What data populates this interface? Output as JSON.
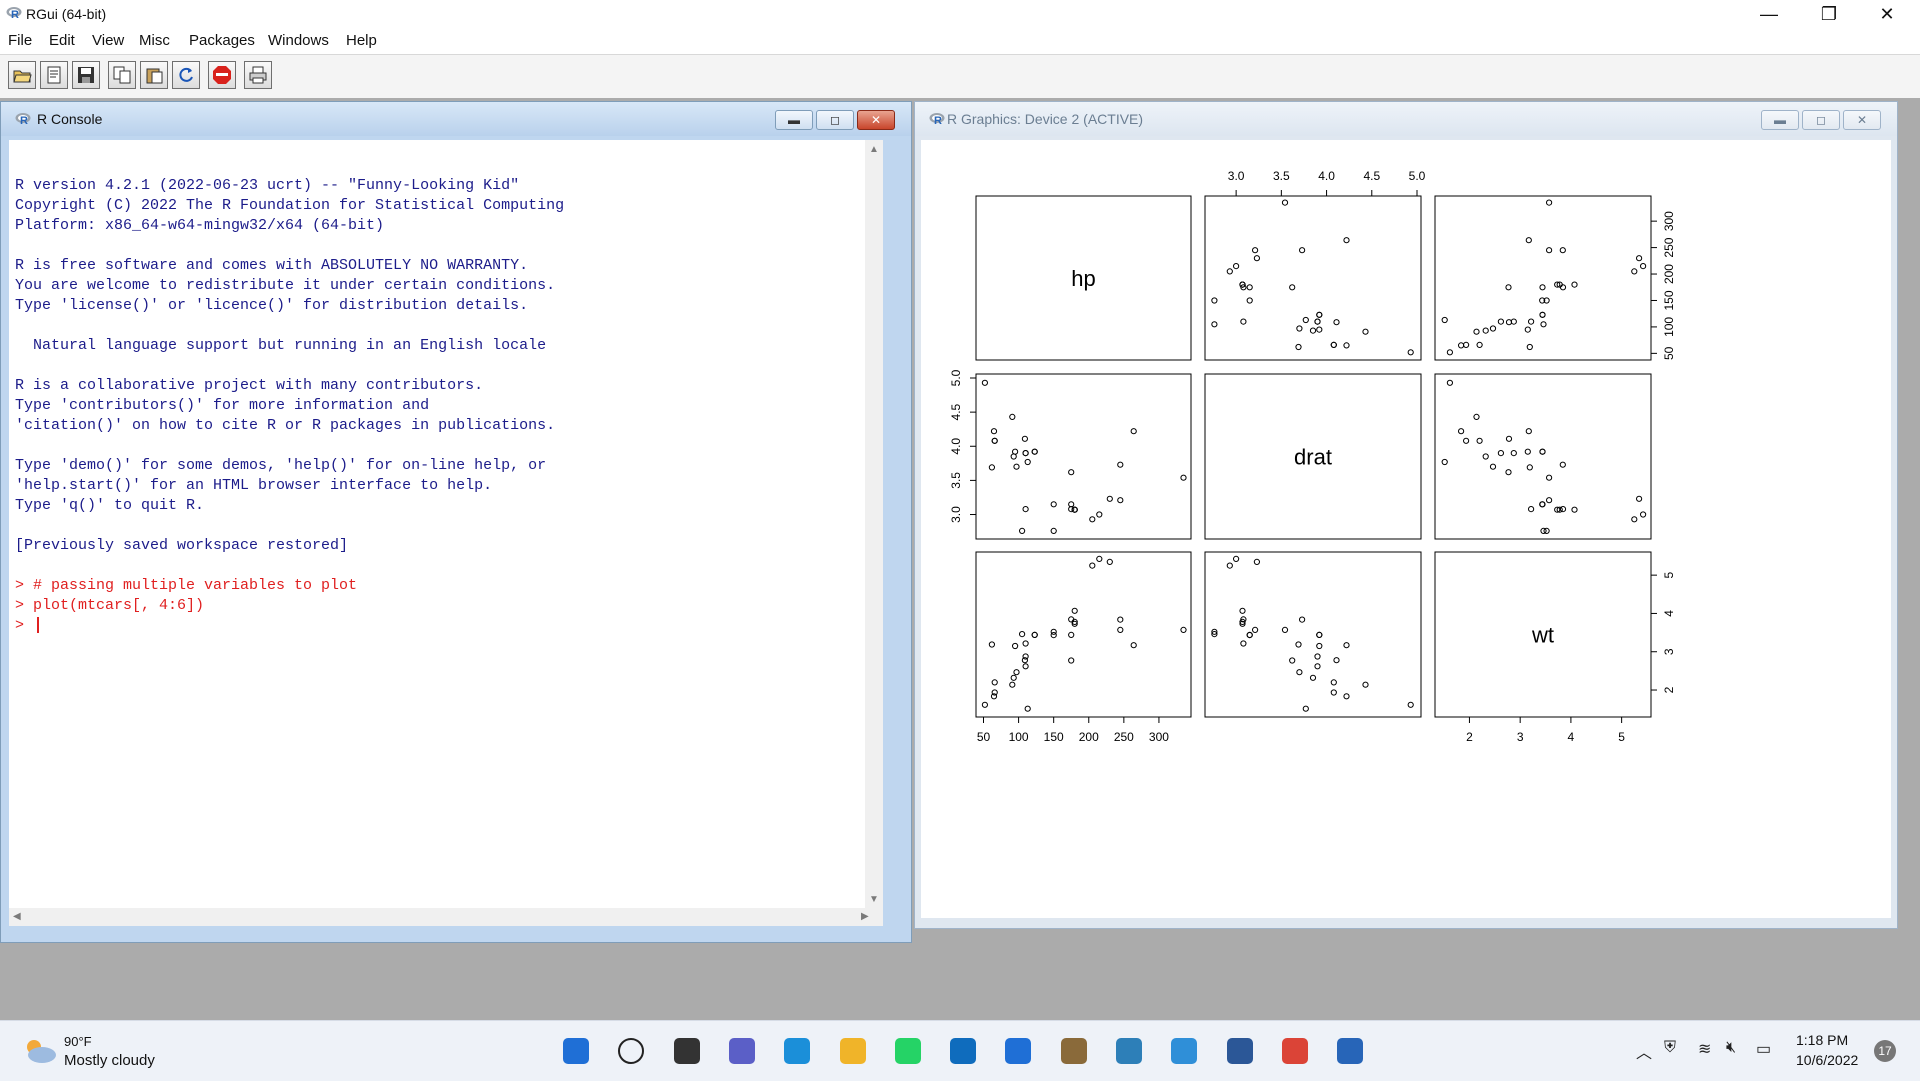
{
  "app": {
    "title": "RGui (64-bit)",
    "controls": {
      "minimize": "—",
      "restore": "❐",
      "close": "✕"
    }
  },
  "menu": [
    "File",
    "Edit",
    "View",
    "Misc",
    "Packages",
    "Windows",
    "Help"
  ],
  "toolbar": [
    "open-script-icon",
    "load-workspace-icon",
    "save-icon",
    "copy-icon",
    "paste-icon",
    "refresh-icon",
    "stop-icon",
    "print-icon"
  ],
  "console": {
    "title": "R Console",
    "lines": [
      "R version 4.2.1 (2022-06-23 ucrt) -- \"Funny-Looking Kid\"",
      "Copyright (C) 2022 The R Foundation for Statistical Computing",
      "Platform: x86_64-w64-mingw32/x64 (64-bit)",
      "",
      "R is free software and comes with ABSOLUTELY NO WARRANTY.",
      "You are welcome to redistribute it under certain conditions.",
      "Type 'license()' or 'licence()' for distribution details.",
      "",
      "  Natural language support but running in an English locale",
      "",
      "R is a collaborative project with many contributors.",
      "Type 'contributors()' for more information and",
      "'citation()' on how to cite R or R packages in publications.",
      "",
      "Type 'demo()' for some demos, 'help()' for on-line help, or",
      "'help.start()' for an HTML browser interface to help.",
      "Type 'q()' to quit R.",
      "",
      "[Previously saved workspace restored]",
      ""
    ],
    "input_lines": [
      "> # passing multiple variables to plot",
      "> plot(mtcars[, 4:6])"
    ],
    "prompt": "> "
  },
  "graphics": {
    "title": "R Graphics: Device 2 (ACTIVE)"
  },
  "chart_data": {
    "type": "scatter",
    "variables": [
      "hp",
      "drat",
      "wt"
    ],
    "axes": {
      "hp": {
        "range": [
          45,
          340
        ],
        "ticks": [
          "50",
          "100",
          "150",
          "200",
          "250",
          "300"
        ]
      },
      "drat": {
        "range": [
          2.7,
          5.0
        ],
        "ticks": [
          "3.0",
          "3.5",
          "4.0",
          "4.5",
          "5.0"
        ]
      },
      "wt": {
        "range": [
          1.4,
          5.5
        ],
        "ticks": [
          "2",
          "3",
          "4",
          "5"
        ]
      }
    },
    "points": {
      "hp": [
        110,
        110,
        93,
        110,
        175,
        105,
        245,
        62,
        95,
        123,
        123,
        180,
        180,
        180,
        205,
        215,
        230,
        66,
        52,
        65,
        97,
        150,
        150,
        245,
        175,
        66,
        91,
        113,
        264,
        175,
        335,
        109
      ],
      "drat": [
        3.9,
        3.9,
        3.85,
        3.08,
        3.15,
        2.76,
        3.21,
        3.69,
        3.92,
        3.92,
        3.92,
        3.07,
        3.07,
        3.07,
        2.93,
        3.0,
        3.23,
        4.08,
        4.93,
        4.22,
        3.7,
        2.76,
        3.15,
        3.73,
        3.08,
        4.08,
        4.43,
        3.77,
        4.22,
        3.62,
        3.54,
        4.11
      ],
      "wt": [
        2.62,
        2.875,
        2.32,
        3.215,
        3.44,
        3.46,
        3.57,
        3.19,
        3.15,
        3.44,
        3.44,
        4.07,
        3.73,
        3.78,
        5.25,
        5.424,
        5.345,
        2.2,
        1.615,
        1.835,
        2.465,
        3.52,
        3.435,
        3.84,
        3.845,
        1.935,
        2.14,
        1.513,
        3.17,
        2.77,
        3.57,
        2.78
      ]
    }
  },
  "taskbar": {
    "weather_temp": "90°F",
    "weather_desc": "Mostly cloudy",
    "time": "1:18 PM",
    "date": "10/6/2022",
    "notifications": "17",
    "icons": [
      "start-icon",
      "search-icon",
      "task-view-icon",
      "chat-icon",
      "edge-icon",
      "file-explorer-icon",
      "whatsapp-icon",
      "store-icon",
      "mail-icon",
      "app-icon",
      "photos-icon",
      "notepad-icon",
      "word-icon",
      "chrome-icon",
      "r-icon"
    ]
  },
  "colors": {
    "console_text": "#1c1c8a",
    "console_input": "#e02020",
    "mdi_background": "#ababab"
  }
}
